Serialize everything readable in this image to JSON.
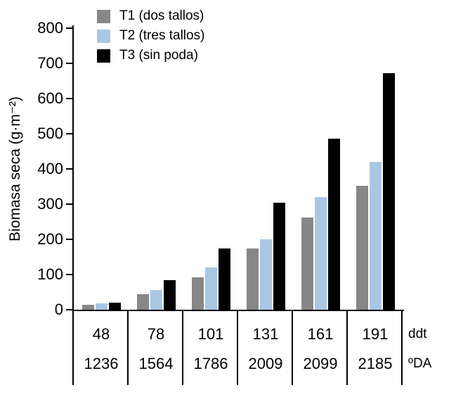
{
  "chart_data": {
    "type": "bar",
    "title": "",
    "ylabel": "Biomasa seca (g·m⁻²)",
    "xlabel": "",
    "ylim": [
      0,
      800
    ],
    "yticks": [
      0,
      100,
      200,
      300,
      400,
      500,
      600,
      700,
      800
    ],
    "grid": false,
    "legend_position": "top-left",
    "categories": [
      "48",
      "78",
      "101",
      "131",
      "161",
      "191"
    ],
    "categories_row2": [
      "1236",
      "1564",
      "1786",
      "2009",
      "2099",
      "2185"
    ],
    "x_unit_labels": [
      "ddt",
      "ºDA"
    ],
    "series": [
      {
        "name": "T1 (dos tallos)",
        "color": "#878787",
        "values": [
          15,
          45,
          92,
          175,
          263,
          352
        ]
      },
      {
        "name": "T2 (tres tallos)",
        "color": "#a9c7e3",
        "values": [
          18,
          57,
          120,
          200,
          320,
          420
        ]
      },
      {
        "name": "T3 (sin poda)",
        "color": "#000000",
        "values": [
          20,
          85,
          175,
          305,
          487,
          672
        ]
      }
    ]
  }
}
